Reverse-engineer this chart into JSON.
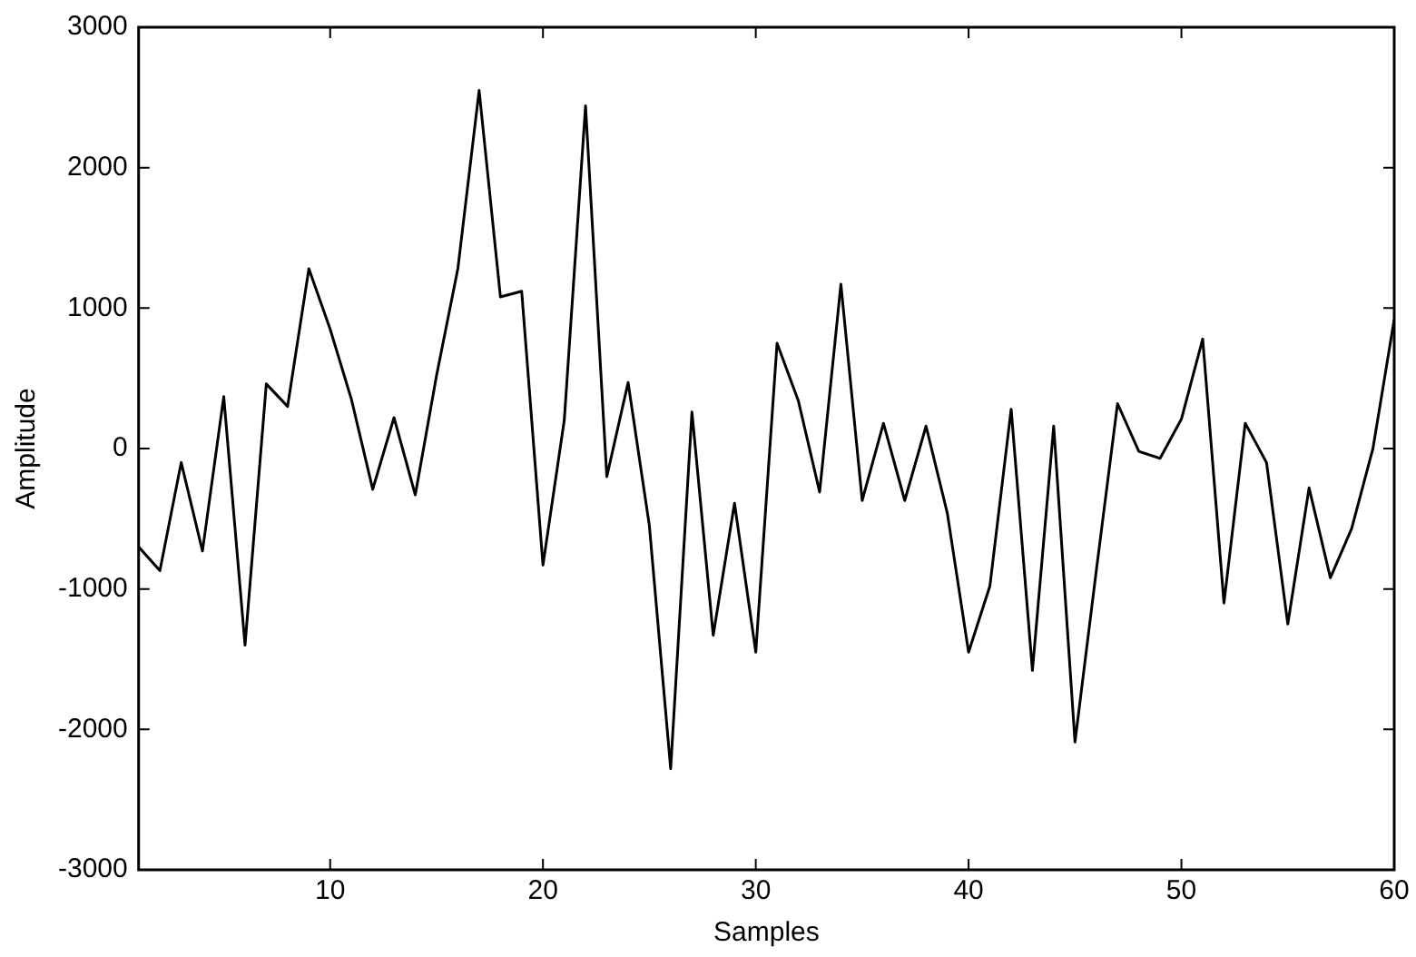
{
  "chart_data": {
    "type": "line",
    "xlabel": "Samples",
    "ylabel": "Amplitude",
    "x": [
      1,
      2,
      3,
      4,
      5,
      6,
      7,
      8,
      9,
      10,
      11,
      12,
      13,
      14,
      15,
      16,
      17,
      18,
      19,
      20,
      21,
      22,
      23,
      24,
      25,
      26,
      27,
      28,
      29,
      30,
      31,
      32,
      33,
      34,
      35,
      36,
      37,
      38,
      39,
      40,
      41,
      42,
      43,
      44,
      45,
      46,
      47,
      48,
      49,
      50,
      51,
      52,
      53,
      54,
      55,
      56,
      57,
      58,
      59,
      60
    ],
    "series": [
      {
        "color": "#000000",
        "values": [
          -700,
          -870,
          -100,
          -730,
          370,
          -1400,
          460,
          300,
          1280,
          850,
          350,
          -290,
          220,
          -330,
          520,
          1280,
          2550,
          1080,
          1120,
          -830,
          200,
          2440,
          -200,
          470,
          -550,
          -2280,
          260,
          -1330,
          -390,
          -1450,
          750,
          340,
          -310,
          1170,
          -370,
          180,
          -370,
          160,
          -460,
          -1450,
          -980,
          280,
          -1580,
          160,
          -2090,
          -870,
          320,
          -20,
          -70,
          210,
          780,
          -1100,
          180,
          -100,
          -1250,
          -280,
          -920,
          -570,
          0,
          920
        ]
      }
    ],
    "xlim": [
      1,
      60
    ],
    "xticks": [
      10,
      20,
      30,
      40,
      50,
      60
    ],
    "ylim": [
      -3000,
      3000
    ],
    "yticks": [
      -3000,
      -2000,
      -1000,
      0,
      1000,
      2000,
      3000
    ],
    "grid": false,
    "legend": false,
    "marker": "none",
    "line_style": "solid"
  }
}
